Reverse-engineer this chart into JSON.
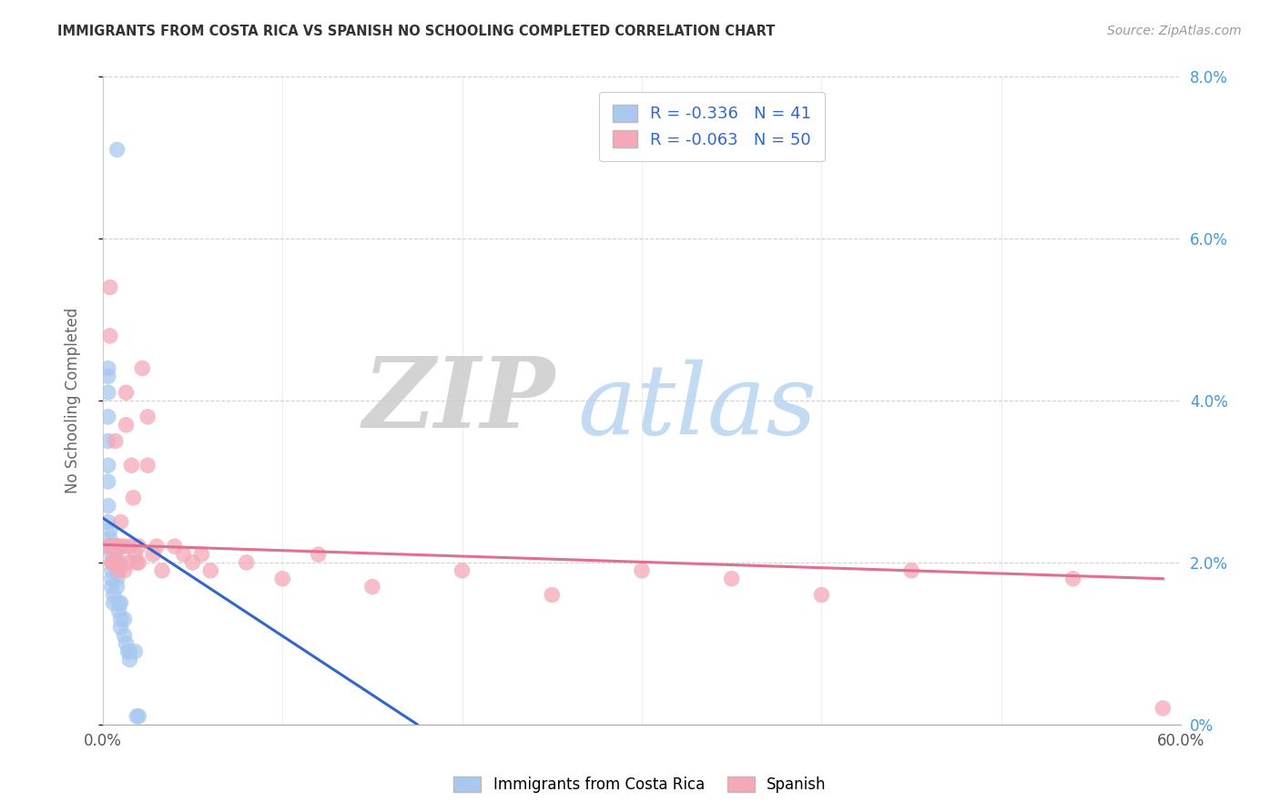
{
  "title": "IMMIGRANTS FROM COSTA RICA VS SPANISH NO SCHOOLING COMPLETED CORRELATION CHART",
  "source": "Source: ZipAtlas.com",
  "ylabel": "No Schooling Completed",
  "right_yticks": [
    "0%",
    "2.0%",
    "4.0%",
    "6.0%",
    "8.0%"
  ],
  "right_ytick_vals": [
    0.0,
    0.02,
    0.04,
    0.06,
    0.08
  ],
  "blue_label": "Immigrants from Costa Rica",
  "pink_label": "Spanish",
  "blue_R": -0.336,
  "blue_N": 41,
  "pink_R": -0.063,
  "pink_N": 50,
  "blue_color": "#a8c8f0",
  "pink_color": "#f4a8b8",
  "blue_line_color": "#3366cc",
  "pink_line_color": "#e07090",
  "watermark_zip": "ZIP",
  "watermark_atlas": "atlas",
  "background_color": "#ffffff",
  "xlim": [
    0.0,
    0.6
  ],
  "ylim": [
    0.0,
    0.08
  ],
  "blue_scatter_x": [
    0.008,
    0.003,
    0.003,
    0.003,
    0.003,
    0.003,
    0.003,
    0.003,
    0.003,
    0.003,
    0.004,
    0.004,
    0.004,
    0.005,
    0.005,
    0.005,
    0.005,
    0.005,
    0.005,
    0.006,
    0.006,
    0.007,
    0.007,
    0.007,
    0.008,
    0.008,
    0.008,
    0.009,
    0.009,
    0.01,
    0.01,
    0.01,
    0.012,
    0.012,
    0.013,
    0.014,
    0.015,
    0.015,
    0.018,
    0.019,
    0.02
  ],
  "blue_scatter_y": [
    0.071,
    0.044,
    0.043,
    0.041,
    0.038,
    0.035,
    0.032,
    0.03,
    0.027,
    0.025,
    0.024,
    0.023,
    0.022,
    0.022,
    0.021,
    0.02,
    0.019,
    0.018,
    0.017,
    0.016,
    0.015,
    0.022,
    0.021,
    0.02,
    0.019,
    0.018,
    0.017,
    0.015,
    0.014,
    0.015,
    0.013,
    0.012,
    0.013,
    0.011,
    0.01,
    0.009,
    0.009,
    0.008,
    0.009,
    0.001,
    0.001
  ],
  "pink_scatter_x": [
    0.003,
    0.004,
    0.004,
    0.005,
    0.005,
    0.006,
    0.006,
    0.007,
    0.008,
    0.008,
    0.009,
    0.009,
    0.01,
    0.01,
    0.01,
    0.012,
    0.012,
    0.013,
    0.013,
    0.015,
    0.015,
    0.016,
    0.017,
    0.018,
    0.019,
    0.02,
    0.02,
    0.022,
    0.025,
    0.025,
    0.028,
    0.03,
    0.033,
    0.04,
    0.045,
    0.05,
    0.055,
    0.06,
    0.08,
    0.1,
    0.12,
    0.15,
    0.2,
    0.25,
    0.3,
    0.35,
    0.4,
    0.45,
    0.54,
    0.59
  ],
  "pink_scatter_y": [
    0.022,
    0.054,
    0.048,
    0.022,
    0.02,
    0.022,
    0.02,
    0.035,
    0.022,
    0.02,
    0.022,
    0.019,
    0.025,
    0.022,
    0.02,
    0.022,
    0.019,
    0.041,
    0.037,
    0.022,
    0.02,
    0.032,
    0.028,
    0.021,
    0.02,
    0.022,
    0.02,
    0.044,
    0.038,
    0.032,
    0.021,
    0.022,
    0.019,
    0.022,
    0.021,
    0.02,
    0.021,
    0.019,
    0.02,
    0.018,
    0.021,
    0.017,
    0.019,
    0.016,
    0.019,
    0.018,
    0.016,
    0.019,
    0.018,
    0.002
  ],
  "blue_trend_x": [
    0.0,
    0.175
  ],
  "blue_trend_y": [
    0.0255,
    0.0
  ],
  "pink_trend_x": [
    0.0,
    0.59
  ],
  "pink_trend_y": [
    0.0222,
    0.018
  ]
}
